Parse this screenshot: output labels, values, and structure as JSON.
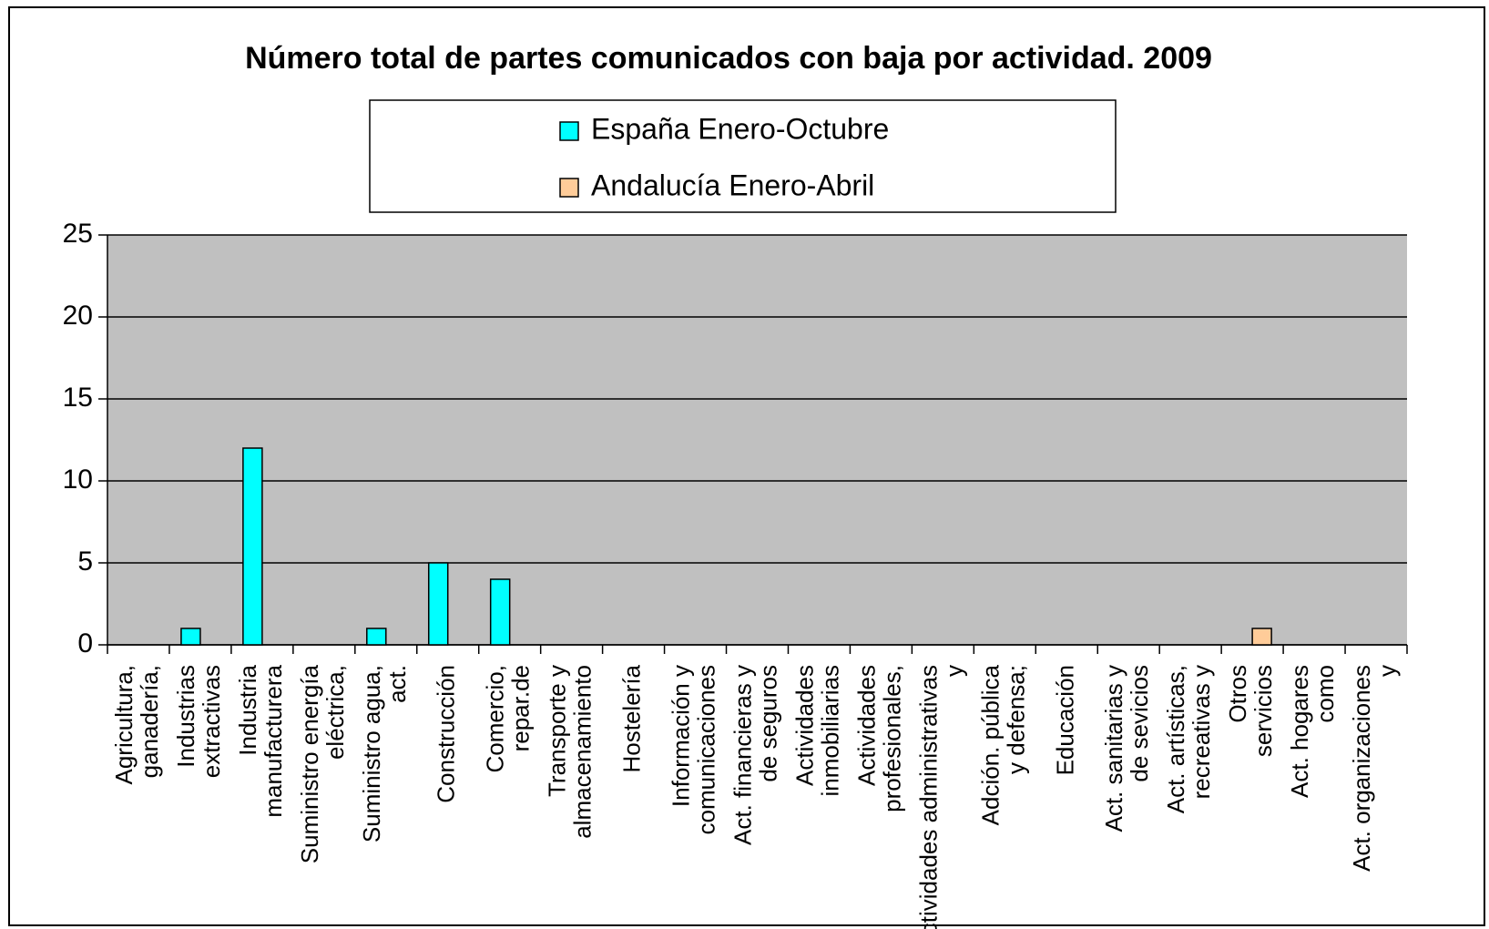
{
  "chart_data": {
    "type": "bar",
    "title": "Número total de partes comunicados con baja por actividad. 2009",
    "categories": [
      "Agricultura, ganadería,",
      "Industrias extractivas",
      "Industria manufacturera",
      "Suministro energía eléctrica,",
      "Suministro agua, act.",
      "Construcción",
      "Comercio, repar.de",
      "Transporte y almacenamiento",
      "Hostelería",
      "Información y comunicaciones",
      "Act. financieras y de seguros",
      "Actividades inmobiliarias",
      "Actividades profesionales,",
      "Actividades administrativas y",
      "Adción. pública y defensa;",
      "Educación",
      "Act. sanitarias y de sevicios",
      "Act. artísticas, recreativas y",
      "Otros servicios",
      "Act. hogares como",
      "Act. organizaciones y"
    ],
    "series": [
      {
        "name": "España Enero-Octubre",
        "color": "#00ffff",
        "values": [
          0,
          1,
          12,
          0,
          1,
          5,
          4,
          0,
          0,
          0,
          0,
          0,
          0,
          0,
          0,
          0,
          0,
          0,
          0,
          0,
          0
        ]
      },
      {
        "name": "Andalucía Enero-Abril",
        "color": "#ffcc99",
        "values": [
          0,
          0,
          0,
          0,
          0,
          0,
          0,
          0,
          0,
          0,
          0,
          0,
          0,
          0,
          0,
          0,
          0,
          0,
          1,
          0,
          0
        ]
      }
    ],
    "ylim": [
      0,
      25
    ],
    "yticks": [
      0,
      5,
      10,
      15,
      20,
      25
    ],
    "grid": true,
    "legend": "top"
  }
}
